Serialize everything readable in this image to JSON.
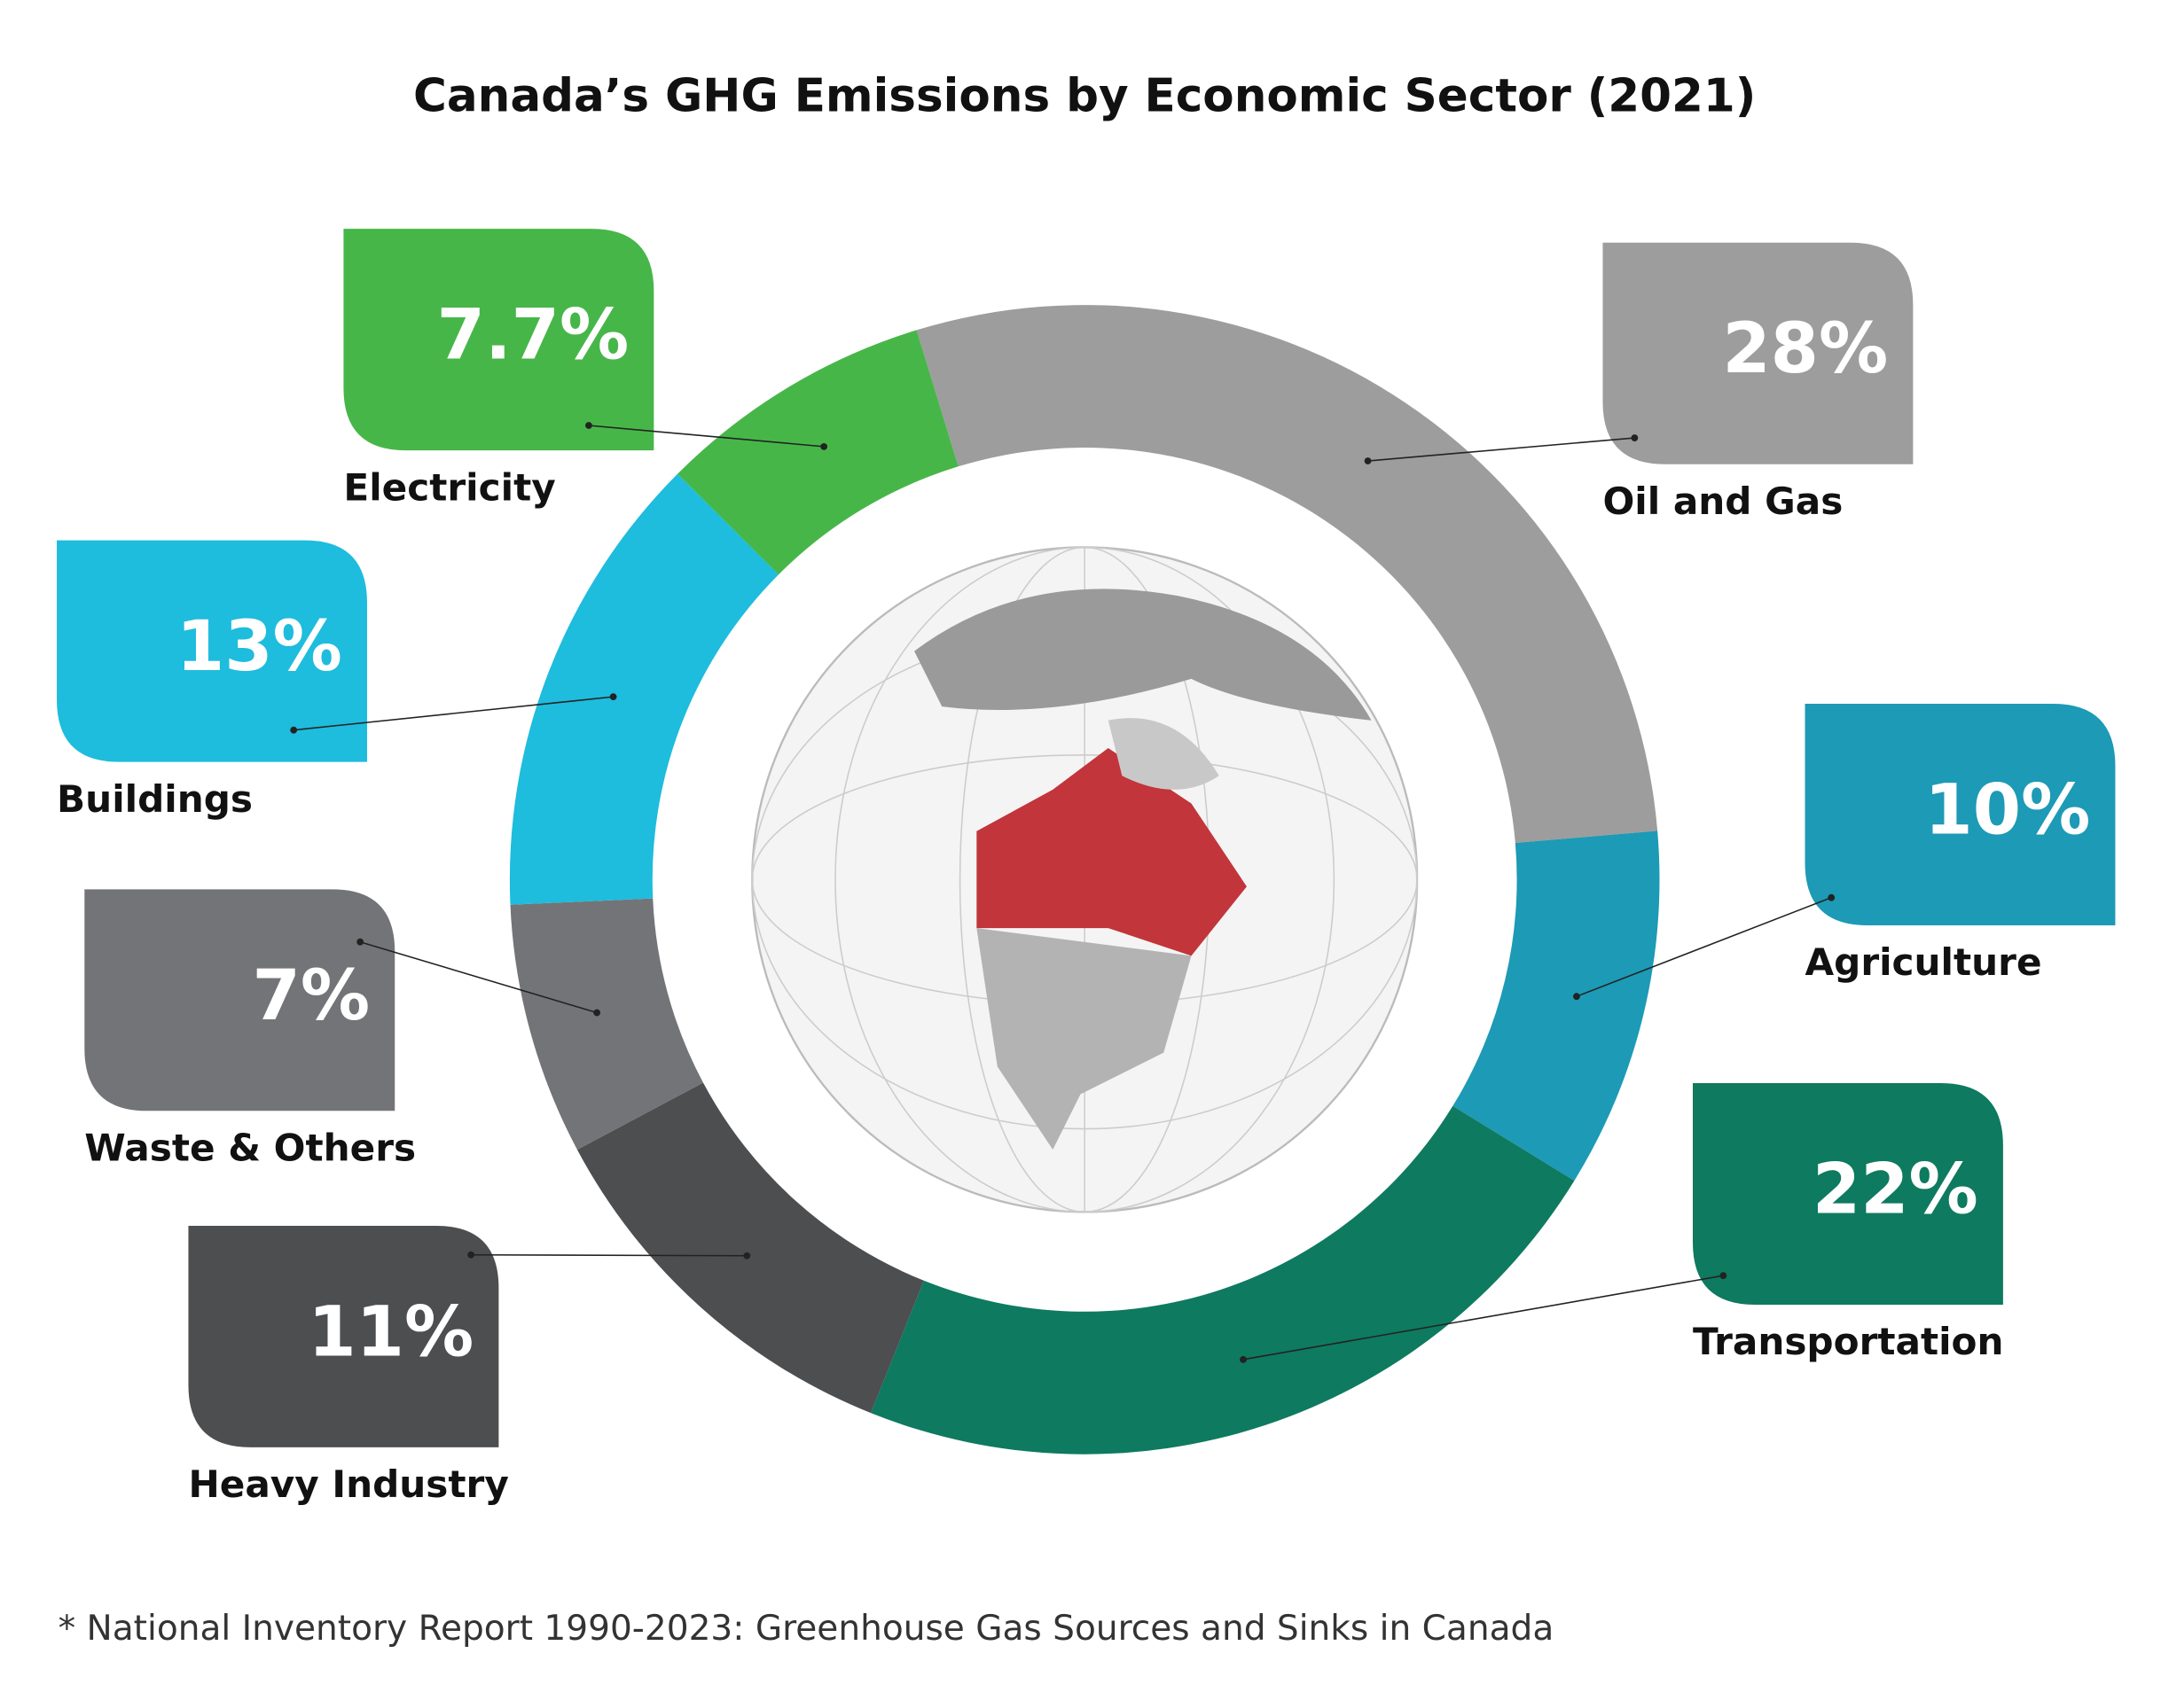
{
  "chart_data": {
    "type": "donut",
    "title": "Canada’s GHG Emissions by Economic Sector (2021)",
    "categories": [
      "Oil and Gas",
      "Agriculture",
      "Transportation",
      "Heavy Industry",
      "Waste & Others",
      "Buildings",
      "Electricity"
    ],
    "values": [
      28,
      10,
      22,
      11,
      7,
      13,
      7.7
    ],
    "value_labels": [
      "28%",
      "10%",
      "22%",
      "11%",
      "7%",
      "13%",
      "7.7%"
    ],
    "colors": [
      "#9d9d9d",
      "#1d9ab5",
      "#0e7a60",
      "#4d4e50",
      "#737477",
      "#1ebcdd",
      "#47b649"
    ],
    "footnote": "*  National Inventory Report 1990-2023: Greenhouse Gas Sources and Sinks in Canada"
  }
}
